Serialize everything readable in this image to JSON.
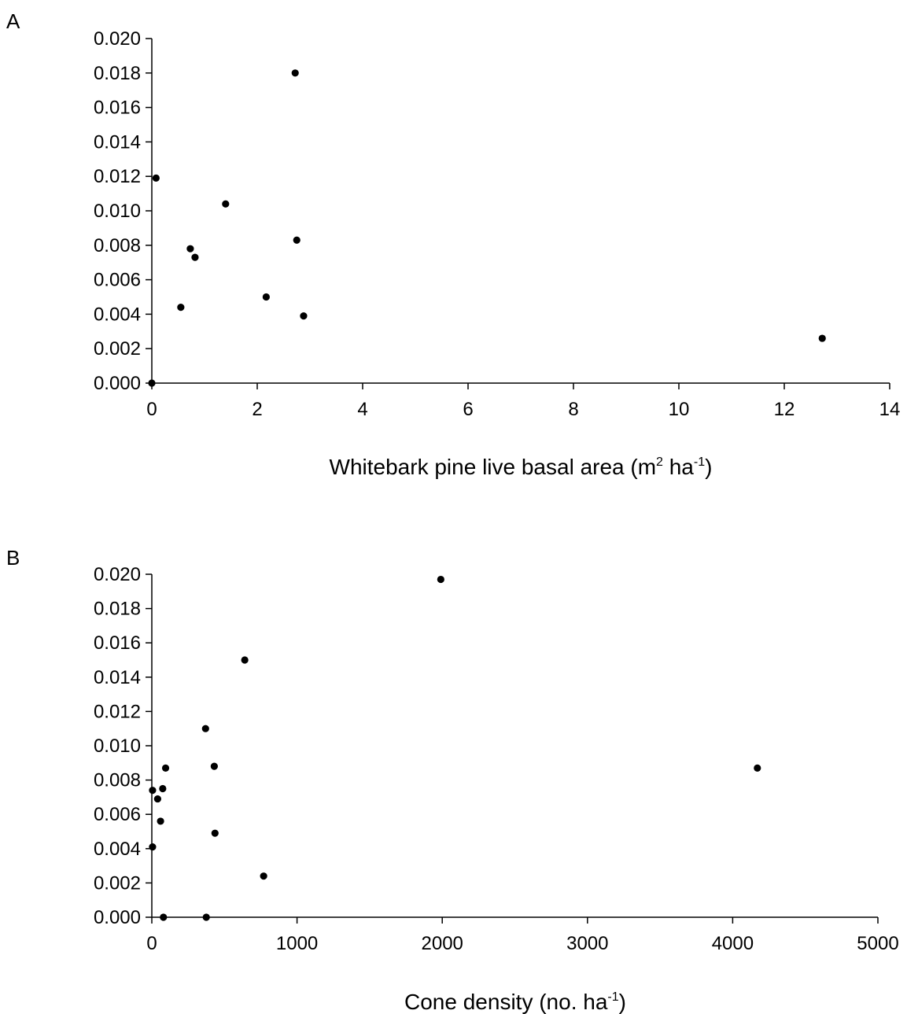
{
  "chart_data": [
    {
      "type": "scatter",
      "panel_label": "A",
      "xlabel_main": "Whitebark pine live basal area (m",
      "xlabel_sup1": "2",
      "xlabel_mid": " ha",
      "xlabel_sup2": "-1",
      "xlabel_end": ")",
      "ylabel": "",
      "xlim": [
        0,
        14
      ],
      "ylim": [
        0,
        0.02
      ],
      "x_ticks": [
        0,
        2,
        4,
        6,
        8,
        10,
        12,
        14
      ],
      "y_ticks": [
        "0.000",
        "0.002",
        "0.004",
        "0.006",
        "0.008",
        "0.010",
        "0.012",
        "0.014",
        "0.016",
        "0.018",
        "0.020"
      ],
      "grid": false,
      "marker_color": "#000000",
      "points": [
        {
          "x": 0.0,
          "y": 0.0
        },
        {
          "x": 0.08,
          "y": 0.0119
        },
        {
          "x": 0.55,
          "y": 0.0044
        },
        {
          "x": 0.73,
          "y": 0.0078
        },
        {
          "x": 0.82,
          "y": 0.0073
        },
        {
          "x": 1.4,
          "y": 0.0104
        },
        {
          "x": 2.17,
          "y": 0.005
        },
        {
          "x": 2.72,
          "y": 0.018
        },
        {
          "x": 2.75,
          "y": 0.0083
        },
        {
          "x": 2.88,
          "y": 0.0039
        },
        {
          "x": 12.72,
          "y": 0.0026
        }
      ]
    },
    {
      "type": "scatter",
      "panel_label": "B",
      "xlabel_main": "Cone density (no. ha",
      "xlabel_sup1": "",
      "xlabel_mid": "",
      "xlabel_sup2": "-1",
      "xlabel_end": ")",
      "ylabel": "",
      "xlim": [
        0,
        5000
      ],
      "ylim": [
        0,
        0.02
      ],
      "x_ticks": [
        0,
        1000,
        2000,
        3000,
        4000,
        5000
      ],
      "y_ticks": [
        "0.000",
        "0.002",
        "0.004",
        "0.006",
        "0.008",
        "0.010",
        "0.012",
        "0.014",
        "0.016",
        "0.018",
        "0.020"
      ],
      "grid": false,
      "marker_color": "#000000",
      "points": [
        {
          "x": 5,
          "y": 0.0074
        },
        {
          "x": 5,
          "y": 0.0041
        },
        {
          "x": 40,
          "y": 0.0069
        },
        {
          "x": 60,
          "y": 0.0056
        },
        {
          "x": 75,
          "y": 0.0075
        },
        {
          "x": 80,
          "y": 0.0
        },
        {
          "x": 95,
          "y": 0.0087
        },
        {
          "x": 370,
          "y": 0.011
        },
        {
          "x": 375,
          "y": 0.0
        },
        {
          "x": 430,
          "y": 0.0088
        },
        {
          "x": 435,
          "y": 0.0049
        },
        {
          "x": 640,
          "y": 0.015
        },
        {
          "x": 770,
          "y": 0.0024
        },
        {
          "x": 1990,
          "y": 0.0197
        },
        {
          "x": 4170,
          "y": 0.0087
        }
      ]
    }
  ]
}
